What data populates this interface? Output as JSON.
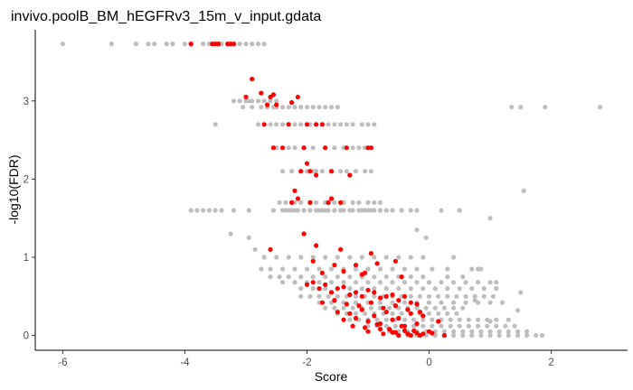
{
  "chart_data": {
    "type": "scatter",
    "title": "invivo.poolB_BM_hEGFRv3_15m_v_input.gdata",
    "xlabel": "Score",
    "ylabel": "-log10(FDR)",
    "xlim": [
      -6.45,
      3.25
    ],
    "ylim": [
      -0.19,
      3.91
    ],
    "x_ticks": [
      -6,
      -4,
      -2,
      0,
      2
    ],
    "y_ticks": [
      0,
      1,
      2,
      3
    ],
    "grid": false,
    "legend": "none",
    "colors": {
      "background": "#e6e6e6",
      "highlight": "#ff0000",
      "axis": "#000000"
    },
    "series": [
      {
        "color": "#bebebe",
        "x": [
          -6.0,
          -5.2,
          -4.8,
          -4.6,
          -4.5,
          -4.3,
          -4.2,
          -4.0,
          -3.9,
          -3.7,
          -3.6,
          -3.5,
          -3.45,
          -3.4,
          -3.3,
          -3.25,
          -3.2,
          -3.1,
          -3.0,
          -2.9,
          -2.8,
          -2.7,
          -3.2,
          -3.1,
          -3.0,
          -2.95,
          -2.9,
          -2.8,
          -2.7,
          -2.6,
          -2.5,
          -3.05,
          -2.9,
          -2.75,
          -2.65,
          -2.55,
          -2.5,
          -2.4,
          -2.3,
          -2.2,
          -2.1,
          -2.0,
          -1.9,
          -1.8,
          -1.7,
          -1.6,
          -1.5,
          -2.8,
          -2.6,
          -2.5,
          -2.4,
          -2.3,
          -2.2,
          -2.1,
          -1.95,
          -1.85,
          -1.75,
          -1.65,
          -1.55,
          -1.45,
          -1.35,
          -1.25,
          -1.1,
          -1.0,
          -0.9,
          -3.5,
          -2.5,
          -2.3,
          -2.2,
          -2.05,
          -1.9,
          -1.7,
          -1.55,
          -1.4,
          -1.25,
          -1.15,
          -1.05,
          -0.95,
          -2.4,
          -2.25,
          -2.1,
          -2.0,
          -1.9,
          -1.85,
          -1.75,
          -1.6,
          -1.45,
          -1.35,
          -1.2,
          -1.05,
          -0.95,
          -2.45,
          -2.35,
          -2.25,
          -2.2,
          -2.1,
          -1.95,
          -1.85,
          -1.7,
          -1.55,
          -1.4,
          -1.25,
          -1.15,
          -1.0,
          -0.9,
          -0.8,
          -2.35,
          -2.25,
          -2.15,
          -2.05,
          -1.95,
          -1.85,
          -1.75,
          -1.65,
          -1.55,
          -1.4,
          -1.25,
          -1.1,
          -1.0,
          -0.9,
          -0.8,
          -0.7,
          -0.6,
          -3.9,
          -3.8,
          -3.7,
          -3.6,
          -3.5,
          -3.4,
          -3.2,
          -2.95,
          -2.55,
          -2.4,
          -2.3,
          -2.2,
          -2.05,
          -1.95,
          -1.8,
          -1.7,
          -1.55,
          -1.45,
          -1.3,
          -1.15,
          -1.05,
          -0.95,
          -0.8,
          -0.7,
          -0.6,
          -0.45,
          -0.3,
          -0.2,
          0.2,
          0.5,
          1.0,
          -0.2,
          -0.05,
          -3.25,
          -2.95,
          -2.85,
          -2.7,
          -2.5,
          -2.3,
          -2.1,
          -1.9,
          -1.7,
          -1.5,
          -1.3,
          -1.1,
          -0.9,
          -0.7,
          -0.5,
          -0.3,
          -0.1,
          0.4,
          -2.75,
          -2.6,
          -2.4,
          -2.2,
          -2.0,
          -1.8,
          -1.6,
          -1.4,
          -1.2,
          -1.0,
          -0.8,
          -0.6,
          -0.4,
          -0.2,
          0.05,
          0.3,
          0.7,
          0.8,
          0.85,
          -2.6,
          -2.45,
          -2.3,
          -2.1,
          -1.9,
          -1.7,
          -1.5,
          -1.3,
          -1.1,
          -0.9,
          -0.7,
          -0.5,
          -0.3,
          -0.1,
          0.3,
          0.55,
          -2.4,
          -2.2,
          -2.0,
          -1.8,
          -1.6,
          -1.4,
          -1.2,
          -1.0,
          -0.8,
          -0.6,
          -0.4,
          -0.2,
          0.0,
          0.2,
          0.4,
          0.6,
          0.8,
          1.0,
          1.1,
          -2.1,
          -1.9,
          -1.7,
          -1.5,
          -1.3,
          -1.1,
          -0.9,
          -0.7,
          -0.5,
          -0.3,
          -0.1,
          0.1,
          0.3,
          0.5,
          0.7,
          0.9,
          1.1,
          -2.1,
          -1.95,
          -1.8,
          -1.65,
          -1.5,
          -1.35,
          -1.2,
          -1.05,
          -0.9,
          -0.75,
          -0.6,
          -0.45,
          -0.3,
          -0.15,
          0.0,
          0.15,
          0.3,
          0.45,
          0.6,
          0.75,
          0.9,
          1.05,
          -1.8,
          -1.6,
          -1.4,
          -1.2,
          -1.0,
          -0.8,
          -0.6,
          -0.4,
          -0.2,
          0.0,
          0.2,
          0.4,
          0.6,
          0.8,
          1.0,
          1.2,
          -1.7,
          -1.55,
          -1.4,
          -1.25,
          -1.1,
          -0.95,
          -0.8,
          -0.65,
          -0.5,
          -0.35,
          -0.2,
          -0.05,
          0.1,
          0.25,
          0.4,
          0.55,
          -1.5,
          -1.35,
          -1.2,
          -1.05,
          -0.9,
          -0.75,
          -0.6,
          -0.45,
          -0.3,
          -0.15,
          0.0,
          0.15,
          0.3,
          0.45,
          -1.3,
          -1.15,
          -1.0,
          -0.85,
          -0.7,
          -0.55,
          -0.4,
          -0.25,
          -0.1,
          0.05,
          0.2,
          0.35,
          0.5,
          0.65,
          0.8,
          0.95,
          1.1,
          1.3,
          -1.0,
          -0.85,
          -0.7,
          -0.55,
          -0.4,
          -0.25,
          -0.1,
          0.05,
          0.2,
          0.35,
          0.5,
          0.65,
          0.8,
          0.95,
          1.1,
          1.25,
          1.4,
          -0.65,
          -0.5,
          -0.35,
          -0.2,
          -0.05,
          0.1,
          0.25,
          0.4,
          0.55,
          0.7,
          0.85,
          1.0,
          1.15,
          1.3,
          1.45,
          1.6,
          -0.35,
          -0.2,
          -0.05,
          0.1,
          0.25,
          0.4,
          0.55,
          0.7,
          0.85,
          1.0,
          1.15,
          1.3,
          1.45,
          1.6,
          1.75,
          1.85,
          1.35,
          1.5,
          1.55,
          1.9,
          2.8,
          1.45,
          1.0,
          0.75,
          1.5
        ],
        "y": [
          3.73,
          3.73,
          3.73,
          3.73,
          3.73,
          3.73,
          3.73,
          3.73,
          3.73,
          3.73,
          3.73,
          3.73,
          3.73,
          3.73,
          3.73,
          3.73,
          3.73,
          3.73,
          3.73,
          3.73,
          3.73,
          3.73,
          3.0,
          3.0,
          3.0,
          3.0,
          3.0,
          3.0,
          3.0,
          3.0,
          3.0,
          2.92,
          2.92,
          2.92,
          2.92,
          2.92,
          2.92,
          2.92,
          2.92,
          2.92,
          2.92,
          2.92,
          2.92,
          2.92,
          2.92,
          2.92,
          2.92,
          2.7,
          2.7,
          2.7,
          2.7,
          2.7,
          2.7,
          2.7,
          2.7,
          2.7,
          2.7,
          2.7,
          2.7,
          2.7,
          2.7,
          2.7,
          2.7,
          2.7,
          2.7,
          2.7,
          2.4,
          2.4,
          2.4,
          2.4,
          2.4,
          2.4,
          2.4,
          2.4,
          2.4,
          2.4,
          2.4,
          2.4,
          2.1,
          2.1,
          2.1,
          2.1,
          2.1,
          2.1,
          2.1,
          2.1,
          2.1,
          2.1,
          2.1,
          2.1,
          2.1,
          1.7,
          1.7,
          1.7,
          1.7,
          1.7,
          1.7,
          1.7,
          1.7,
          1.7,
          1.7,
          1.7,
          1.7,
          1.7,
          1.7,
          1.7,
          1.6,
          1.6,
          1.6,
          1.6,
          1.6,
          1.6,
          1.6,
          1.6,
          1.6,
          1.6,
          1.6,
          1.6,
          1.6,
          1.6,
          1.6,
          1.6,
          1.6,
          1.6,
          1.6,
          1.6,
          1.6,
          1.6,
          1.6,
          1.6,
          1.6,
          1.6,
          1.6,
          1.6,
          1.6,
          1.6,
          1.6,
          1.6,
          1.6,
          1.6,
          1.6,
          1.6,
          1.6,
          1.6,
          1.6,
          1.6,
          1.6,
          1.6,
          1.6,
          1.6,
          1.6,
          1.6,
          1.6,
          1.5,
          1.35,
          1.25,
          1.3,
          1.25,
          1.1,
          1.0,
          1.0,
          1.0,
          1.0,
          1.0,
          1.0,
          1.0,
          1.0,
          1.0,
          1.0,
          1.0,
          1.0,
          1.0,
          1.0,
          1.0,
          0.85,
          0.85,
          0.85,
          0.85,
          0.85,
          0.85,
          0.85,
          0.85,
          0.85,
          0.85,
          0.85,
          0.85,
          0.85,
          0.85,
          0.85,
          0.85,
          0.85,
          0.85,
          0.85,
          0.75,
          0.75,
          0.75,
          0.75,
          0.75,
          0.75,
          0.75,
          0.75,
          0.75,
          0.75,
          0.75,
          0.75,
          0.75,
          0.75,
          0.75,
          0.75,
          0.68,
          0.68,
          0.68,
          0.68,
          0.68,
          0.68,
          0.68,
          0.68,
          0.68,
          0.68,
          0.68,
          0.68,
          0.68,
          0.68,
          0.68,
          0.68,
          0.68,
          0.68,
          0.68,
          0.6,
          0.6,
          0.6,
          0.6,
          0.6,
          0.6,
          0.6,
          0.6,
          0.6,
          0.6,
          0.6,
          0.6,
          0.6,
          0.6,
          0.6,
          0.6,
          0.6,
          0.5,
          0.5,
          0.5,
          0.5,
          0.5,
          0.5,
          0.5,
          0.5,
          0.5,
          0.5,
          0.5,
          0.5,
          0.5,
          0.5,
          0.5,
          0.5,
          0.5,
          0.5,
          0.5,
          0.5,
          0.5,
          0.5,
          0.42,
          0.42,
          0.42,
          0.42,
          0.42,
          0.42,
          0.42,
          0.42,
          0.42,
          0.42,
          0.42,
          0.42,
          0.42,
          0.42,
          0.42,
          0.42,
          0.35,
          0.35,
          0.35,
          0.35,
          0.35,
          0.35,
          0.35,
          0.35,
          0.35,
          0.35,
          0.35,
          0.35,
          0.35,
          0.35,
          0.35,
          0.35,
          0.28,
          0.28,
          0.28,
          0.28,
          0.28,
          0.28,
          0.28,
          0.28,
          0.28,
          0.28,
          0.28,
          0.28,
          0.28,
          0.28,
          0.2,
          0.2,
          0.2,
          0.2,
          0.2,
          0.2,
          0.2,
          0.2,
          0.2,
          0.2,
          0.2,
          0.2,
          0.2,
          0.2,
          0.2,
          0.2,
          0.2,
          0.2,
          0.12,
          0.12,
          0.12,
          0.12,
          0.12,
          0.12,
          0.12,
          0.12,
          0.12,
          0.12,
          0.12,
          0.12,
          0.12,
          0.12,
          0.12,
          0.12,
          0.12,
          0.05,
          0.05,
          0.05,
          0.05,
          0.05,
          0.05,
          0.05,
          0.05,
          0.05,
          0.05,
          0.05,
          0.05,
          0.05,
          0.05,
          0.05,
          0.05,
          0.0,
          0.0,
          0.0,
          0.0,
          0.0,
          0.0,
          0.0,
          0.0,
          0.0,
          0.0,
          0.0,
          0.0,
          0.0,
          0.0,
          0.0,
          0.0,
          2.92,
          2.92,
          1.85,
          2.92,
          2.92,
          0.32,
          0.18,
          0.45,
          0.55
        ]
      },
      {
        "color": "#ff0000",
        "x": [
          -3.9,
          -3.55,
          -3.5,
          -3.45,
          -3.3,
          -3.25,
          -3.2,
          -2.9,
          -3.0,
          -2.75,
          -2.6,
          -2.65,
          -2.55,
          -2.5,
          -2.25,
          -2.15,
          -2.7,
          -2.3,
          -2.0,
          -1.85,
          -1.75,
          -2.55,
          -2.4,
          -2.05,
          -1.7,
          -1.35,
          -1.0,
          -0.95,
          -2.0,
          -2.1,
          -1.85,
          -1.6,
          -1.3,
          -1.95,
          -2.2,
          -2.15,
          -2.25,
          -1.95,
          -1.6,
          -1.65,
          -1.45,
          -2.05,
          -2.6,
          -1.85,
          -1.45,
          -0.95,
          -1.9,
          -1.55,
          -1.2,
          -0.85,
          -0.55,
          -1.75,
          -1.4,
          -1.1,
          -1.05,
          -0.45,
          -2.0,
          -1.9,
          -1.8,
          -1.7,
          -1.6,
          -1.5,
          -1.4,
          -1.3,
          -1.2,
          -1.1,
          -1.0,
          -0.9,
          -0.8,
          -0.7,
          -0.6,
          -0.5,
          -0.4,
          -0.3,
          -0.2,
          -1.75,
          -1.55,
          -1.35,
          -1.15,
          -0.95,
          -0.75,
          -0.55,
          -0.35,
          -0.15,
          -1.5,
          -1.3,
          -1.1,
          -0.9,
          -0.7,
          -0.5,
          -0.3,
          -0.1,
          0.15,
          -1.4,
          -1.2,
          -1.0,
          -0.8,
          -0.6,
          -0.4,
          -0.2,
          -1.25,
          -1.05,
          -0.85,
          -0.65,
          -0.45,
          -0.25,
          -1.0,
          -0.8,
          -0.6,
          -0.4,
          -0.2,
          0.0,
          -0.75,
          -0.55,
          -0.35,
          -0.15,
          0.05,
          -0.5,
          -0.3,
          -0.1,
          0.25
        ],
        "y": [
          3.73,
          3.73,
          3.73,
          3.73,
          3.73,
          3.73,
          3.73,
          3.28,
          3.05,
          3.1,
          3.05,
          2.95,
          3.08,
          2.95,
          2.98,
          3.05,
          2.7,
          2.7,
          2.7,
          2.7,
          2.7,
          2.4,
          2.4,
          2.4,
          2.4,
          2.4,
          2.4,
          2.4,
          2.2,
          2.1,
          2.05,
          2.1,
          2.05,
          2.1,
          1.85,
          1.75,
          1.7,
          1.7,
          1.75,
          1.7,
          1.7,
          1.3,
          1.1,
          1.15,
          1.1,
          1.05,
          0.95,
          0.9,
          0.9,
          0.92,
          0.95,
          0.8,
          0.82,
          0.78,
          0.8,
          0.75,
          0.65,
          0.68,
          0.6,
          0.65,
          0.55,
          0.6,
          0.62,
          0.52,
          0.55,
          0.5,
          0.58,
          0.55,
          0.48,
          0.5,
          0.52,
          0.45,
          0.5,
          0.42,
          0.4,
          0.42,
          0.45,
          0.4,
          0.38,
          0.42,
          0.35,
          0.38,
          0.33,
          0.3,
          0.3,
          0.28,
          0.33,
          0.25,
          0.3,
          0.22,
          0.28,
          0.25,
          0.18,
          0.2,
          0.22,
          0.18,
          0.15,
          0.2,
          0.12,
          0.15,
          0.12,
          0.1,
          0.14,
          0.08,
          0.12,
          0.06,
          0.05,
          0.08,
          0.04,
          0.06,
          0.03,
          0.05,
          0.02,
          0.04,
          0.02,
          0.0,
          0.03,
          0.0,
          0.0,
          0.02,
          0.0
        ]
      }
    ]
  }
}
